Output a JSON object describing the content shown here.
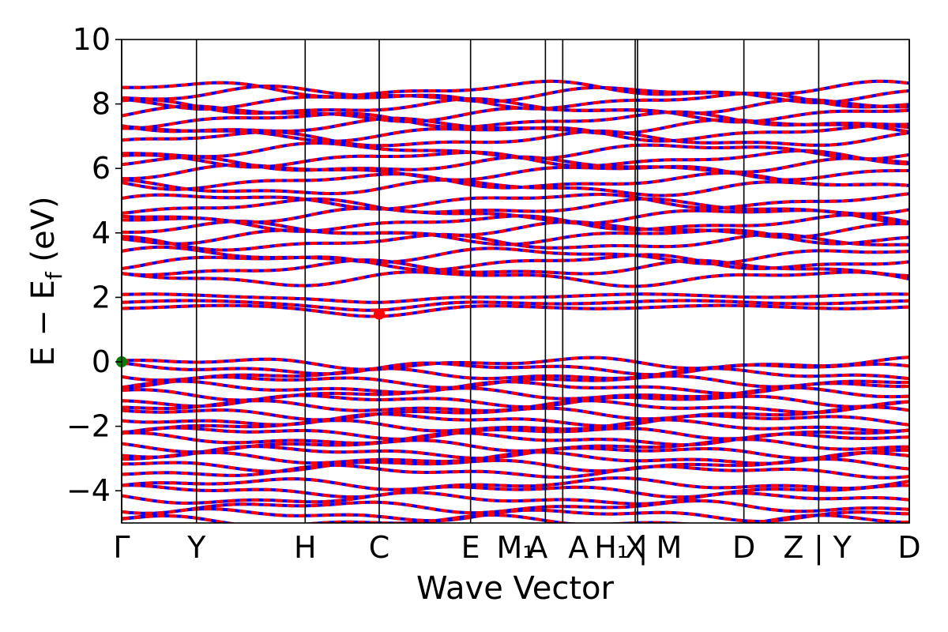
{
  "chart_data": {
    "type": "line",
    "title": "",
    "xlabel": "Wave Vector",
    "ylabel": "E − E",
    "ylabel_subscript": "f",
    "ylabel_unit": " (eV)",
    "ylim": [
      -5,
      10
    ],
    "yticks": [
      -4,
      -2,
      0,
      2,
      4,
      6,
      8,
      10
    ],
    "ytick_labels": [
      "−4",
      "−2",
      "0",
      "2",
      "4",
      "6",
      "8",
      "10"
    ],
    "grid": false,
    "legend": "none",
    "band_color_primary": "#ff0000",
    "band_color_secondary": "#0000ff",
    "vbm_color": "#008000",
    "cbm_color": "#ff0000",
    "kpath": [
      {
        "label": "Γ",
        "x": 0.0
      },
      {
        "label": "Y",
        "x": 0.095
      },
      {
        "label": "H",
        "x": 0.233
      },
      {
        "label": "C",
        "x": 0.327
      },
      {
        "label": "E",
        "x": 0.443
      },
      {
        "label": "M₁|A",
        "x": 0.538
      },
      {
        "label": "A",
        "x": 0.56
      },
      {
        "label": "H₁|X",
        "x": 0.652
      },
      {
        "label": "M",
        "x": 0.655
      },
      {
        "label": "D",
        "x": 0.79
      },
      {
        "label": "Z|Y",
        "x": 0.885
      },
      {
        "label": "D",
        "x": 1.0
      }
    ],
    "kpath_display_labels": [
      "Γ",
      "Y",
      "H",
      "C",
      "E",
      "M₁",
      "A",
      "A",
      "H₁",
      "X",
      "|",
      "M",
      "D",
      "Z",
      "|",
      "Y",
      "D"
    ],
    "xlim": [
      0.0,
      1.0
    ],
    "band_edges": {
      "vbm": {
        "x": 0.0,
        "y": 0.0
      },
      "cbm": {
        "x": 0.327,
        "y": 1.48
      }
    },
    "conduction_bands_at_gamma": [
      1.7,
      1.85,
      2.05,
      2.6,
      2.9,
      3.1,
      3.3,
      3.7,
      3.9,
      4.1,
      4.3,
      4.55,
      4.8,
      5.0,
      5.4,
      5.6,
      5.9,
      6.1,
      6.3,
      6.55,
      6.9,
      7.1,
      7.3,
      7.5,
      7.7,
      7.9,
      8.1,
      8.3,
      8.45
    ],
    "valence_bands_at_gamma": [
      -0.05,
      -0.2,
      -0.4,
      -0.6,
      -0.8,
      -1.0,
      -1.2,
      -1.4,
      -1.6,
      -1.8,
      -2.0,
      -2.2,
      -2.4,
      -2.6,
      -2.8,
      -3.0,
      -3.2,
      -3.4,
      -3.8,
      -4.0,
      -4.25,
      -4.5,
      -4.75,
      -4.95
    ]
  }
}
